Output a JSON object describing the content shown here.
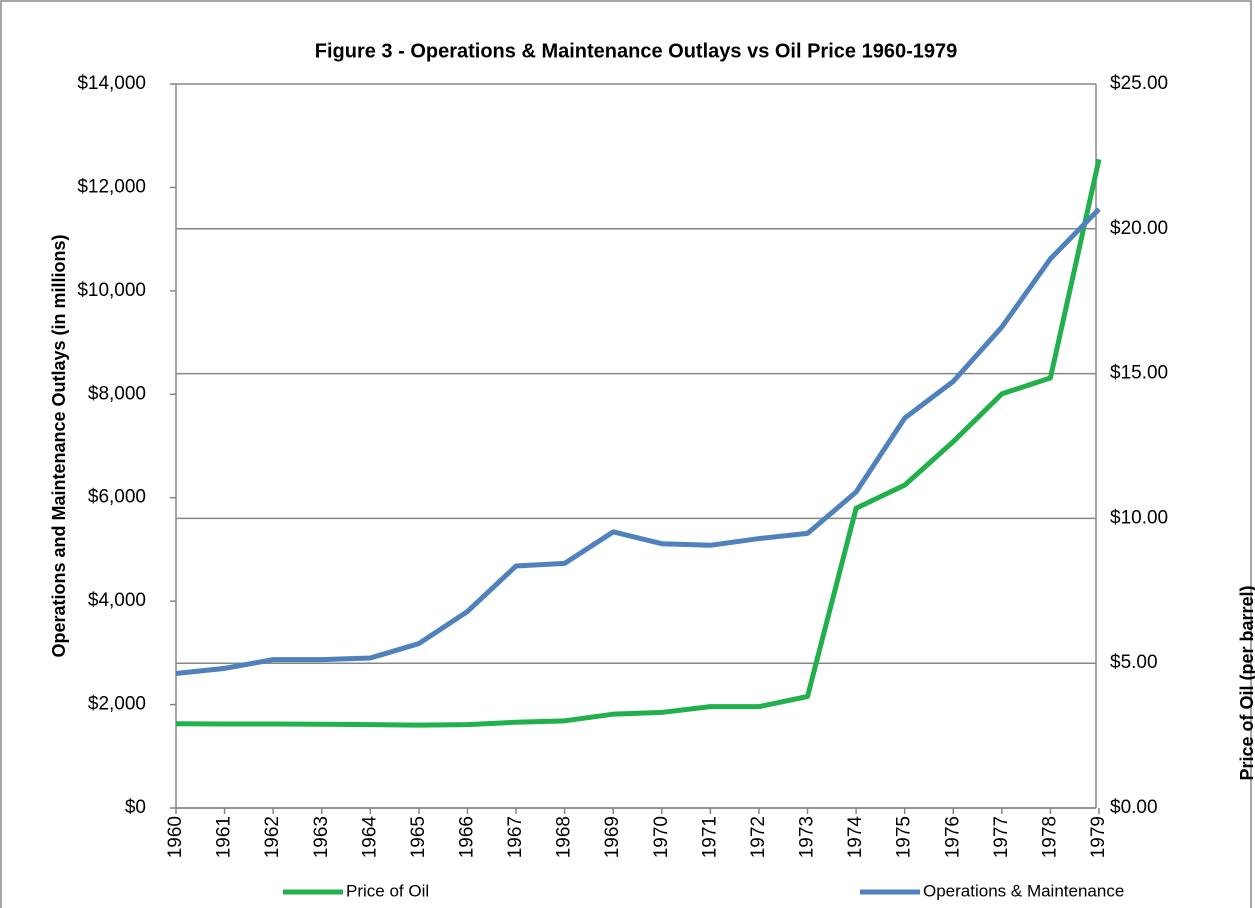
{
  "chart_data": {
    "type": "line",
    "title": "Figure 3 - Operations & Maintenance Outlays vs Oil Price 1960-1979",
    "y_label": "Operations and Maintenance Outlays (in millions)",
    "y2_label": "Price of Oil (per barrel)",
    "categories": [
      "1960",
      "1961",
      "1962",
      "1963",
      "1964",
      "1965",
      "1966",
      "1967",
      "1968",
      "1969",
      "1970",
      "1971",
      "1972",
      "1973",
      "1974",
      "1975",
      "1976",
      "1977",
      "1978",
      "1979"
    ],
    "series": [
      {
        "name": "Price of Oil",
        "color": "#21b04b",
        "axis": "y2",
        "values": [
          2.91,
          2.9,
          2.9,
          2.89,
          2.88,
          2.86,
          2.88,
          2.96,
          3.01,
          3.24,
          3.3,
          3.5,
          3.5,
          3.85,
          10.35,
          11.15,
          12.65,
          14.3,
          14.85,
          22.4
        ]
      },
      {
        "name": "Operations & Maintenance",
        "color": "#4f81bd",
        "values": [
          2600,
          2700,
          2870,
          2870,
          2900,
          3180,
          3800,
          4680,
          4730,
          5340,
          5110,
          5080,
          5210,
          5310,
          6110,
          7540,
          8250,
          9300,
          10620,
          11580
        ]
      }
    ],
    "ylim": [
      0,
      14000
    ],
    "yticks": [
      {
        "value": 0,
        "label": "$0"
      },
      {
        "value": 2000,
        "label": "$2,000"
      },
      {
        "value": 4000,
        "label": "$4,000"
      },
      {
        "value": 6000,
        "label": "$6,000"
      },
      {
        "value": 8000,
        "label": "$8,000"
      },
      {
        "value": 10000,
        "label": "$10,000"
      },
      {
        "value": 12000,
        "label": "$12,000"
      },
      {
        "value": 14000,
        "label": "$14,000"
      }
    ],
    "y2lim": [
      0,
      25
    ],
    "y2ticks": [
      {
        "value": 0,
        "label": "$0.00"
      },
      {
        "value": 5,
        "label": "$5.00"
      },
      {
        "value": 10,
        "label": "$10.00"
      },
      {
        "value": 15,
        "label": "$15.00"
      },
      {
        "value": 20,
        "label": "$20.00"
      },
      {
        "value": 25,
        "label": "$25.00"
      }
    ],
    "grid": "y2",
    "legend": "bottom"
  }
}
